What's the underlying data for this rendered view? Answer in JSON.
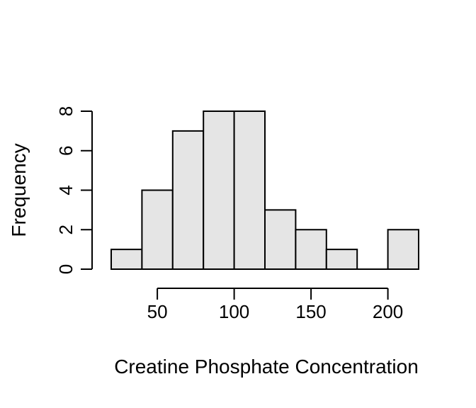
{
  "chart_data": {
    "type": "bar",
    "title": "",
    "xlabel": "Creatine Phosphate Concentration",
    "ylabel": "Frequency",
    "bins": [
      {
        "start": 20,
        "end": 40,
        "count": 1
      },
      {
        "start": 40,
        "end": 60,
        "count": 4
      },
      {
        "start": 60,
        "end": 80,
        "count": 7
      },
      {
        "start": 80,
        "end": 100,
        "count": 8
      },
      {
        "start": 100,
        "end": 120,
        "count": 8
      },
      {
        "start": 120,
        "end": 140,
        "count": 3
      },
      {
        "start": 140,
        "end": 160,
        "count": 2
      },
      {
        "start": 160,
        "end": 180,
        "count": 1
      },
      {
        "start": 180,
        "end": 200,
        "count": 0
      },
      {
        "start": 200,
        "end": 220,
        "count": 2
      }
    ],
    "xticks": [
      50,
      100,
      150,
      200
    ],
    "yticks": [
      0,
      2,
      4,
      6,
      8
    ],
    "xlim": [
      20,
      220
    ],
    "ylim": [
      0,
      8
    ],
    "grid": false,
    "bar_color": "#e5e5e5",
    "edge_color": "#000000"
  }
}
